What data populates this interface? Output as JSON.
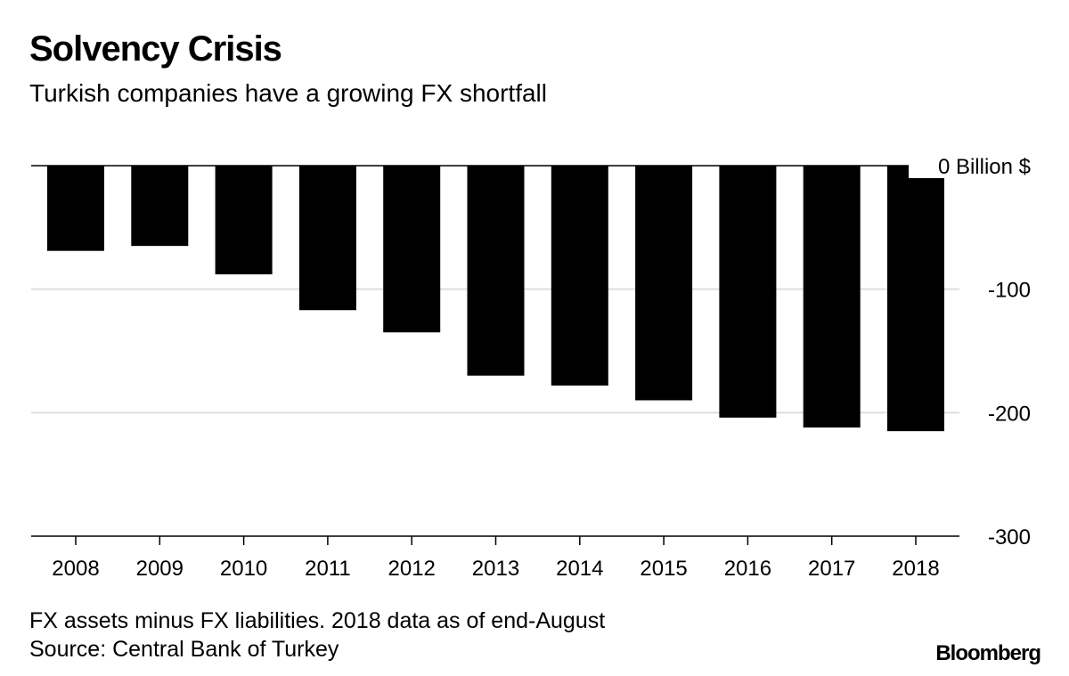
{
  "title": "Solvency Crisis",
  "subtitle": "Turkish companies have a growing FX shortfall",
  "chart_data": {
    "type": "bar",
    "categories": [
      "2008",
      "2009",
      "2010",
      "2011",
      "2012",
      "2013",
      "2014",
      "2015",
      "2016",
      "2017",
      "2018"
    ],
    "values": [
      -69,
      -65,
      -88,
      -117,
      -135,
      -170,
      -178,
      -190,
      -204,
      -212,
      -215
    ],
    "ylim": [
      -300,
      0
    ],
    "yticks": [
      0,
      -100,
      -200,
      -300
    ],
    "ytick_labels": [
      "0 Billion $",
      "-100",
      "-200",
      "-300"
    ],
    "y_axis_position": "right",
    "grid": true,
    "bar_color": "#000000",
    "grid_color": "#dddddd"
  },
  "footnote": "FX assets minus FX liabilities. 2018 data as of end-August",
  "source": "Source: Central Bank of Turkey",
  "logo": "Bloomberg"
}
